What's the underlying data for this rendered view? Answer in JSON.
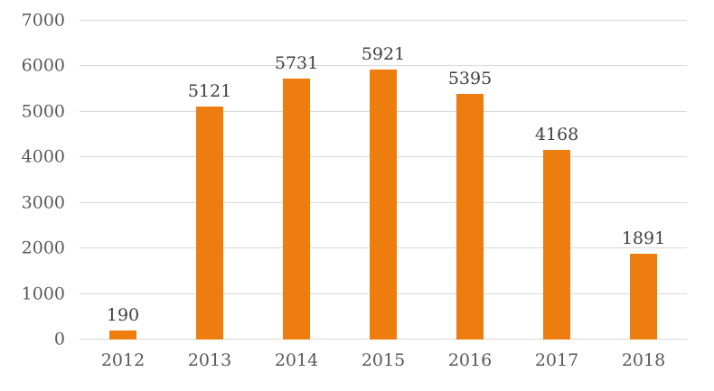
{
  "chart_data": {
    "type": "bar",
    "categories": [
      "2012",
      "2013",
      "2014",
      "2015",
      "2016",
      "2017",
      "2018"
    ],
    "values": [
      190,
      5121,
      5731,
      5921,
      5395,
      4168,
      1891
    ],
    "data_labels": [
      "190",
      "5121",
      "5731",
      "5921",
      "5395",
      "4168",
      "1891"
    ],
    "title": "",
    "xlabel": "",
    "ylabel": "",
    "ylim": [
      0,
      7000
    ],
    "ytick_step": 1000,
    "ytick_labels": [
      "0",
      "1000",
      "2000",
      "3000",
      "4000",
      "5000",
      "6000",
      "7000"
    ],
    "grid": true,
    "legend_position": "none",
    "bar_color": "#ED7D0E",
    "gridline_color": "#D9D9D9",
    "tick_text_color": "#595959",
    "data_label_color": "#404040"
  }
}
